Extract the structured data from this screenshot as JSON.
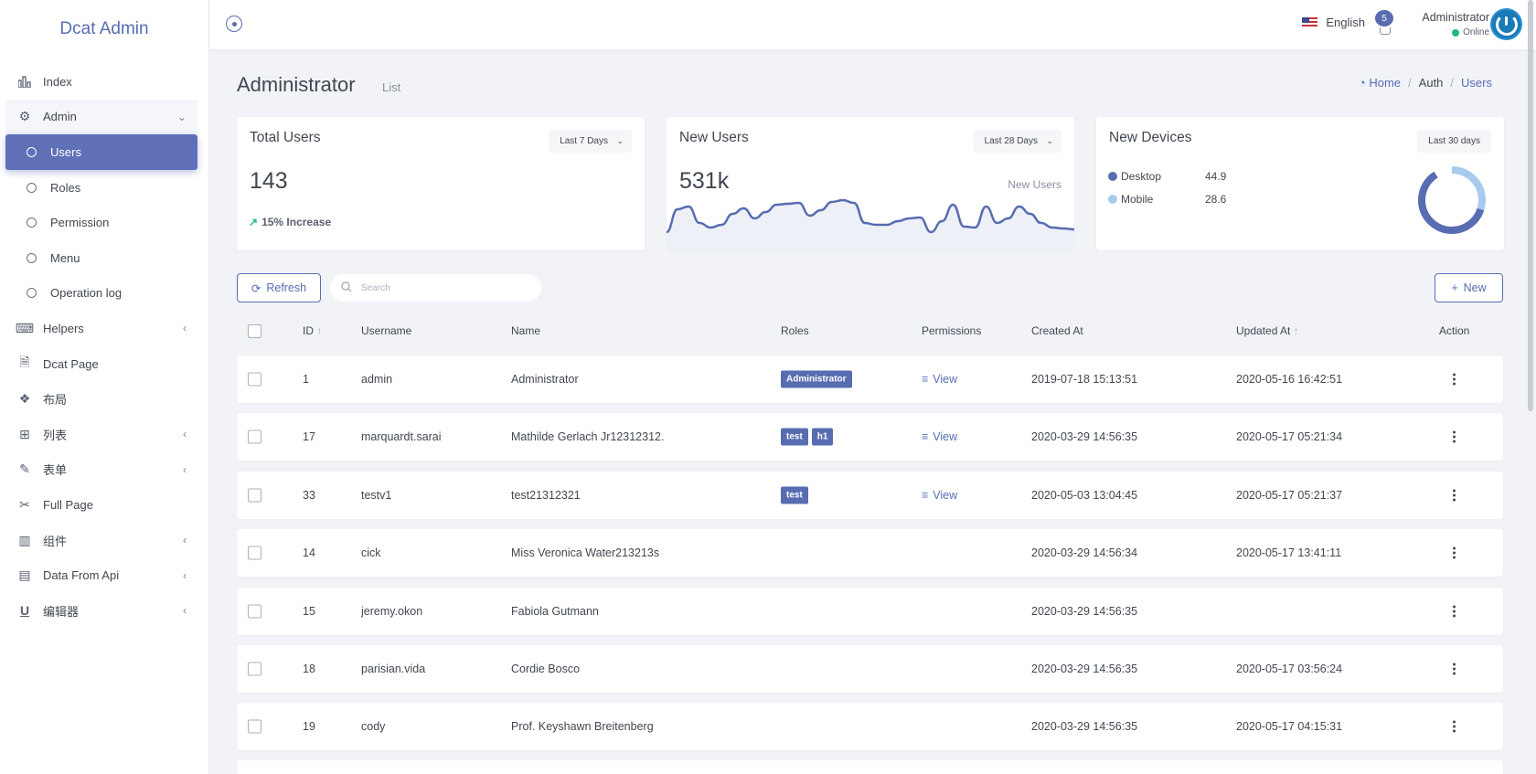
{
  "app": {
    "brand": "Dcat Admin"
  },
  "sidebar": {
    "items": [
      {
        "label": "Index",
        "icon": "bar-chart-icon"
      },
      {
        "label": "Admin",
        "icon": "gear-icon"
      },
      {
        "label": "Users",
        "icon": "circle-icon"
      },
      {
        "label": "Roles",
        "icon": "circle-icon"
      },
      {
        "label": "Permission",
        "icon": "circle-icon"
      },
      {
        "label": "Menu",
        "icon": "circle-icon"
      },
      {
        "label": "Operation log",
        "icon": "circle-icon"
      },
      {
        "label": "Helpers",
        "icon": "keyboard-icon"
      },
      {
        "label": "Dcat Page",
        "icon": "file-icon"
      },
      {
        "label": "布局",
        "icon": "cubes-icon"
      },
      {
        "label": "列表",
        "icon": "grid-icon"
      },
      {
        "label": "表单",
        "icon": "edit-icon"
      },
      {
        "label": "Full Page",
        "icon": "scissors-icon"
      },
      {
        "label": "组件",
        "icon": "building-icon"
      },
      {
        "label": "Data From Api",
        "icon": "film-icon"
      },
      {
        "label": "编辑器",
        "icon": "underline-icon"
      }
    ]
  },
  "header": {
    "language": "English",
    "notifications": "5",
    "user_name": "Administrator",
    "user_status": "Online"
  },
  "page": {
    "title": "Administrator",
    "subtitle": "List",
    "breadcrumb": [
      "Home",
      "Auth",
      "Users"
    ]
  },
  "cards": {
    "total_users": {
      "title": "Total Users",
      "range": "Last 7 Days",
      "value": "143",
      "increase": "15% Increase"
    },
    "new_users": {
      "title": "New Users",
      "range": "Last 28 Days",
      "value": "531k",
      "label": "New Users",
      "trend": [
        20,
        45,
        48,
        30,
        25,
        28,
        40,
        46,
        35,
        42,
        50,
        51,
        52,
        38,
        44,
        53,
        55,
        52,
        30,
        28,
        28,
        32,
        35,
        36,
        20,
        32,
        50,
        26,
        25,
        48,
        30,
        35,
        48,
        40,
        30,
        25,
        24,
        23
      ]
    },
    "new_devices": {
      "title": "New Devices",
      "range": "Last 30 days",
      "legend": [
        {
          "name": "Desktop",
          "value": "44.9",
          "color": "#586cb1"
        },
        {
          "name": "Mobile",
          "value": "28.6",
          "color": "#a8cbed"
        }
      ]
    }
  },
  "toolbar": {
    "refresh": "Refresh",
    "search_placeholder": "Search",
    "new": "New"
  },
  "table": {
    "headers": [
      "ID",
      "Username",
      "Name",
      "Roles",
      "Permissions",
      "Created At",
      "Updated At",
      "Action"
    ],
    "view_label": "View",
    "rows": [
      {
        "id": "1",
        "username": "admin",
        "name": "Administrator",
        "roles": [
          "Administrator"
        ],
        "view": true,
        "created": "2019-07-18 15:13:51",
        "updated": "2020-05-16 16:42:51"
      },
      {
        "id": "17",
        "username": "marquardt.sarai",
        "name": "Mathilde Gerlach Jr12312312.",
        "roles": [
          "test",
          "h1"
        ],
        "view": true,
        "created": "2020-03-29 14:56:35",
        "updated": "2020-05-17 05:21:34"
      },
      {
        "id": "33",
        "username": "testv1",
        "name": "test21312321",
        "roles": [
          "test"
        ],
        "view": true,
        "created": "2020-05-03 13:04:45",
        "updated": "2020-05-17 05:21:37"
      },
      {
        "id": "14",
        "username": "cick",
        "name": "Miss Veronica Water213213s",
        "roles": [],
        "view": false,
        "created": "2020-03-29 14:56:34",
        "updated": "2020-05-17 13:41:11"
      },
      {
        "id": "15",
        "username": "jeremy.okon",
        "name": "Fabiola Gutmann",
        "roles": [],
        "view": false,
        "created": "2020-03-29 14:56:35",
        "updated": ""
      },
      {
        "id": "18",
        "username": "parisian.vida",
        "name": "Cordie Bosco",
        "roles": [],
        "view": false,
        "created": "2020-03-29 14:56:35",
        "updated": "2020-05-17 03:56:24"
      },
      {
        "id": "19",
        "username": "cody",
        "name": "Prof. Keyshawn Breitenberg",
        "roles": [],
        "view": false,
        "created": "2020-03-29 14:56:35",
        "updated": "2020-05-17 04:15:31"
      }
    ]
  }
}
